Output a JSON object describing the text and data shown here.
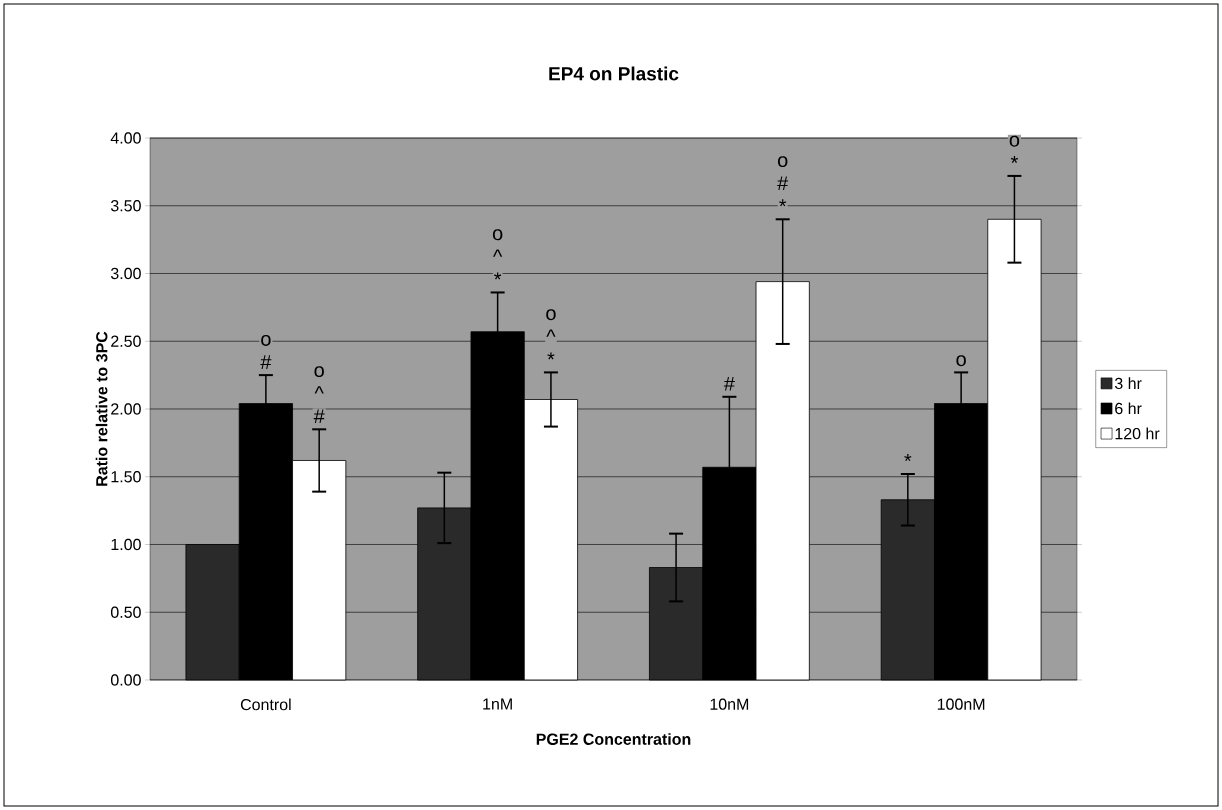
{
  "chart_data": {
    "type": "bar",
    "title": "EP4 on Plastic",
    "xlabel": "PGE2 Concentration",
    "ylabel": "Ratio relative to 3PC",
    "categories": [
      "Control",
      "1nM",
      "10nM",
      "100nM"
    ],
    "series": [
      {
        "name": "3 hr",
        "color": "#2a2a2a",
        "values": [
          1.0,
          1.27,
          0.83,
          1.33
        ],
        "errors": [
          null,
          0.26,
          0.25,
          0.19
        ]
      },
      {
        "name": "6 hr",
        "color": "#000000",
        "values": [
          2.04,
          2.57,
          1.57,
          2.04
        ],
        "errors": [
          0.21,
          0.29,
          0.52,
          0.23
        ]
      },
      {
        "name": "120 hr",
        "color": "#ffffff",
        "values": [
          1.62,
          2.07,
          2.94,
          3.4
        ],
        "errors": [
          0.23,
          0.2,
          0.46,
          0.32
        ]
      }
    ],
    "ylim": [
      0,
      4
    ],
    "yticks": [
      {
        "value": 0,
        "label": "0.00"
      },
      {
        "value": 0.5,
        "label": "0.50"
      },
      {
        "value": 1,
        "label": "1.00"
      },
      {
        "value": 1.5,
        "label": "1.50"
      },
      {
        "value": 2,
        "label": "2.00"
      },
      {
        "value": 2.5,
        "label": "2.50"
      },
      {
        "value": 3,
        "label": "3.00"
      },
      {
        "value": 3.5,
        "label": "3.50"
      },
      {
        "value": 4,
        "label": "4.00"
      }
    ],
    "grid": "y",
    "legend": "right",
    "annotations": [
      "#",
      "o",
      "#",
      "^",
      "o",
      "*",
      "^",
      "o",
      "*",
      "^",
      "o",
      "#",
      "*",
      "#",
      "o",
      "*",
      "o",
      "*",
      "o"
    ]
  }
}
